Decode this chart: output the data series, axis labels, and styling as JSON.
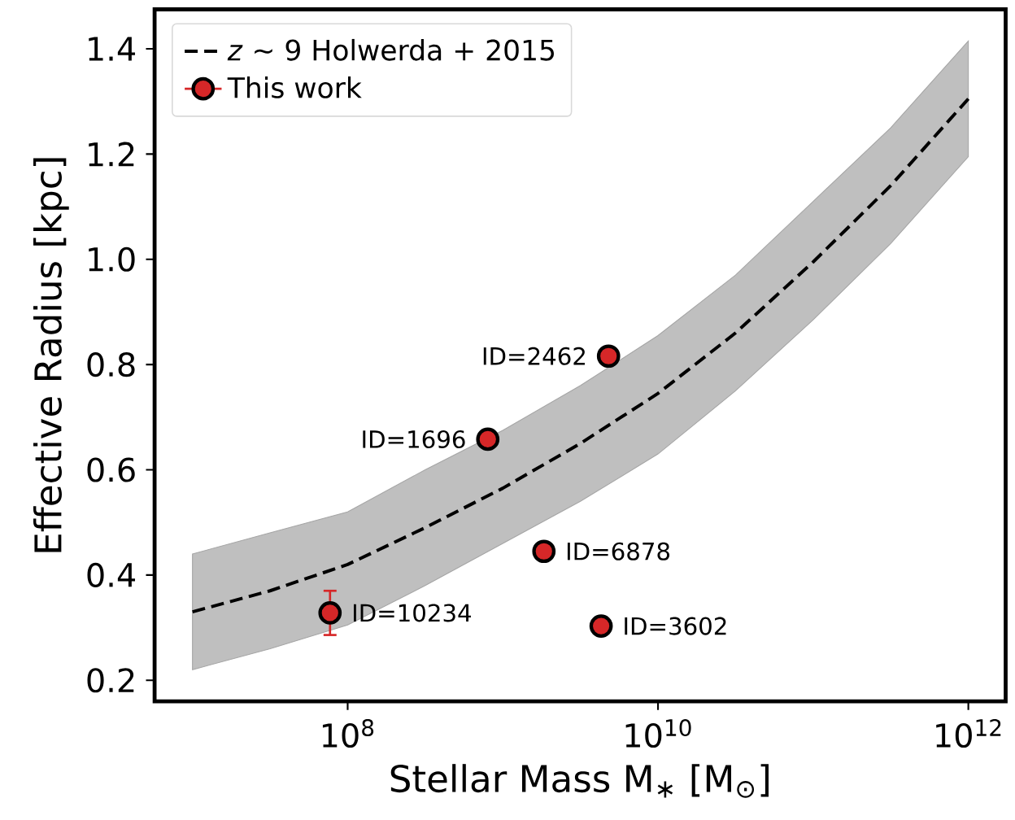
{
  "chart_data": {
    "type": "scatter",
    "xlabel": "Stellar Mass M$_{∗}$ [M$_{⊙}$]",
    "ylabel": "Effective Radius [kpc]",
    "log": "x",
    "xlim": [
      5700000.0,
      1740000000000.0
    ],
    "ylim": [
      0.16,
      1.475
    ],
    "xticks": [
      {
        "value": 100000000.0,
        "label": "10$^{8}$"
      },
      {
        "value": 10000000000.0,
        "label": "10$^{10}$"
      },
      {
        "value": 1000000000000.0,
        "label": "10$^{12}$"
      }
    ],
    "yticks": [
      0.2,
      0.4,
      0.6,
      0.8,
      {
        "value": 1.0,
        "label": "1.0"
      },
      1.2,
      1.4
    ],
    "grid": false,
    "legend": "top left",
    "series": [
      {
        "name": "*z* ∼ 9 Holwerda + 2015",
        "type": "line",
        "color": "#000000",
        "line_style": "dashed",
        "marker": "none",
        "x": [
          10000000.0,
          31600000.0,
          100000000.0,
          316000000.0,
          1000000000.0,
          3160000000.0,
          10000000000.0,
          31600000000.0,
          100000000000.0,
          316000000000.0,
          1000000000000.0
        ],
        "values": [
          0.33,
          0.37,
          0.42,
          0.49,
          0.565,
          0.65,
          0.745,
          0.86,
          0.995,
          1.14,
          1.305
        ],
        "lower": [
          0.22,
          0.26,
          0.305,
          0.38,
          0.46,
          0.54,
          0.63,
          0.75,
          0.885,
          1.03,
          1.195
        ],
        "upper": [
          0.44,
          0.48,
          0.52,
          0.6,
          0.675,
          0.76,
          0.855,
          0.97,
          1.11,
          1.25,
          1.415
        ]
      },
      {
        "name": "This work",
        "color": "#d62728",
        "marker": "circle",
        "x": [
          77000000.0,
          800000000.0,
          1840000000.0,
          4300000000.0,
          4800000000.0
        ],
        "values": [
          0.328,
          0.658,
          0.445,
          0.303,
          0.816
        ],
        "errors": [
          0.042,
          null,
          null,
          null,
          null
        ]
      }
    ],
    "annotations": [
      {
        "text": "ID=10234",
        "x": 77000000.0,
        "y": 0.328
      },
      {
        "text": "ID=1696",
        "x": 800000000.0,
        "y": 0.658
      },
      {
        "text": "ID=6878",
        "x": 1840000000.0,
        "y": 0.445
      },
      {
        "text": "ID=3602",
        "x": 4300000000.0,
        "y": 0.303
      },
      {
        "text": "ID=2462",
        "x": 4800000000.0,
        "y": 0.816
      }
    ]
  }
}
